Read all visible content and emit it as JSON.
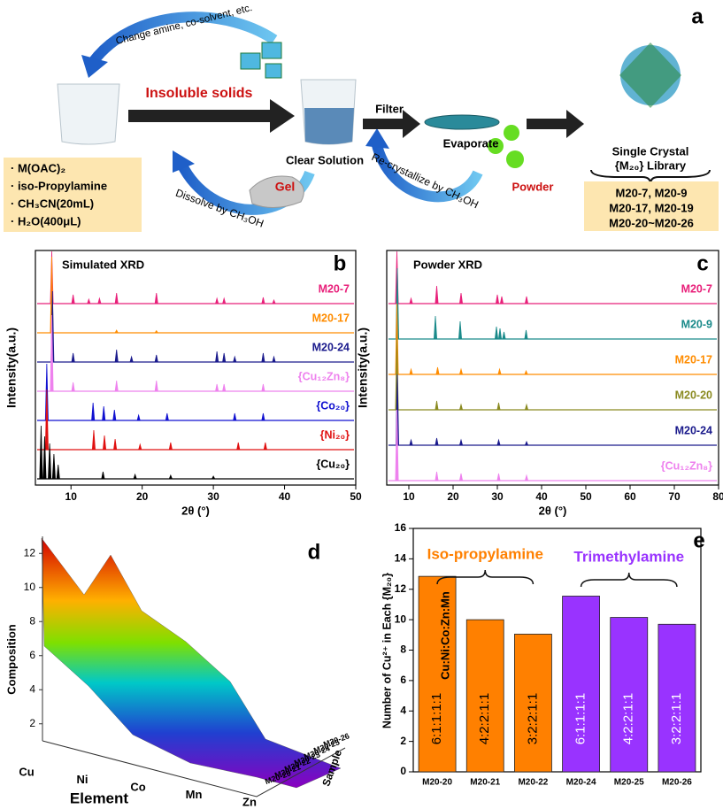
{
  "panel_a": {
    "label": "a",
    "arrow_top": "Change amine, co-solvent, etc.",
    "insoluble": "Insoluble solids",
    "clear": "Clear Solution",
    "filter": "Filter",
    "evaporate": "Evaporate",
    "powder": "Powder",
    "gel": "Gel",
    "dissolve": "Dissolve by CH₃OH",
    "recrystallize": "Re-crystallize by CH₃OH",
    "reagents": [
      "· M(OAC)₂",
      "· iso-Propylamine",
      "· CH₃CN(20mL)",
      "· H₂O(400μL)"
    ],
    "library_title": "Single Crystal",
    "library_sub": "{M₂₀} Library",
    "library": [
      "M20-7, M20-9",
      "M20-17, M20-19",
      "M20-20~M20-26"
    ]
  },
  "chart_data": [
    {
      "type": "xrd",
      "label": "b",
      "title": "Simulated XRD",
      "ylabel": "Intensity(a.u.)",
      "xlabel": "2θ (°)",
      "xlim": [
        5,
        50
      ],
      "xticks": [
        10,
        20,
        30,
        40,
        50
      ],
      "series": [
        {
          "name": "M20-7",
          "color": "#e8207a",
          "peaks": [
            [
              7.3,
              3
            ],
            [
              10.3,
              0.5
            ],
            [
              12.5,
              0.25
            ],
            [
              14,
              0.3
            ],
            [
              16.4,
              0.6
            ],
            [
              22,
              0.6
            ],
            [
              30.5,
              0.3
            ],
            [
              31.5,
              0.3
            ],
            [
              37,
              0.35
            ],
            [
              38.5,
              0.2
            ]
          ]
        },
        {
          "name": "M20-17",
          "color": "#ff8c00",
          "peaks": [
            [
              7.3,
              4.3
            ],
            [
              16.4,
              0.15
            ],
            [
              22,
              0.12
            ]
          ]
        },
        {
          "name": "M20-24",
          "color": "#1a1a8c",
          "peaks": [
            [
              7.4,
              4
            ],
            [
              10.3,
              0.5
            ],
            [
              16.4,
              0.7
            ],
            [
              18.5,
              0.3
            ],
            [
              22,
              0.4
            ],
            [
              30.5,
              0.6
            ],
            [
              31.5,
              0.5
            ],
            [
              33,
              0.3
            ],
            [
              37,
              0.5
            ],
            [
              38.5,
              0.3
            ]
          ]
        },
        {
          "name": "{Cu₁₂Zn₈}",
          "color": "#ee82ee",
          "peaks": [
            [
              7.3,
              4.3
            ],
            [
              10.3,
              0.5
            ],
            [
              16.4,
              0.6
            ],
            [
              22,
              0.6
            ],
            [
              30.5,
              0.4
            ],
            [
              31.5,
              0.4
            ],
            [
              37,
              0.4
            ]
          ]
        },
        {
          "name": "{Co₂₀}",
          "color": "#1010d0",
          "peaks": [
            [
              6.6,
              3.2
            ],
            [
              13.1,
              1
            ],
            [
              14.6,
              0.8
            ],
            [
              16.1,
              0.6
            ],
            [
              19.5,
              0.3
            ],
            [
              23.5,
              0.4
            ],
            [
              33,
              0.4
            ],
            [
              37,
              0.4
            ]
          ]
        },
        {
          "name": "{Ni₂₀}",
          "color": "#e01010",
          "peaks": [
            [
              6.6,
              3.4
            ],
            [
              13.2,
              1.1
            ],
            [
              14.7,
              0.8
            ],
            [
              16.2,
              0.6
            ],
            [
              19.7,
              0.3
            ],
            [
              24,
              0.4
            ],
            [
              33.5,
              0.4
            ],
            [
              37.3,
              0.4
            ]
          ]
        },
        {
          "name": "{Cu₂₀}",
          "color": "#000000",
          "peaks": [
            [
              5.8,
              3
            ],
            [
              6.3,
              2.4
            ],
            [
              7,
              2
            ],
            [
              7.6,
              1.4
            ],
            [
              8.2,
              0.8
            ],
            [
              14.5,
              0.4
            ],
            [
              19,
              0.25
            ],
            [
              24,
              0.2
            ],
            [
              30,
              0.15
            ]
          ]
        }
      ]
    },
    {
      "type": "xrd",
      "label": "c",
      "title": "Powder XRD",
      "ylabel": "Intensity(a.u.)",
      "xlabel": "2θ (°)",
      "xlim": [
        5,
        80
      ],
      "xticks": [
        10,
        20,
        30,
        40,
        50,
        60,
        70,
        80
      ],
      "series": [
        {
          "name": "M20-7",
          "color": "#e8207a",
          "peaks": [
            [
              7.3,
              3
            ],
            [
              10.5,
              0.3
            ],
            [
              16.3,
              1
            ],
            [
              21.8,
              0.6
            ],
            [
              30,
              0.5
            ],
            [
              31,
              0.4
            ],
            [
              36.6,
              0.4
            ]
          ]
        },
        {
          "name": "M20-9",
          "color": "#1a8a8a",
          "peaks": [
            [
              7.4,
              4
            ],
            [
              16,
              1.3
            ],
            [
              21.6,
              1
            ],
            [
              29.8,
              0.7
            ],
            [
              30.6,
              0.6
            ],
            [
              31.5,
              0.4
            ],
            [
              36.5,
              0.5
            ]
          ]
        },
        {
          "name": "M20-17",
          "color": "#ff8c00",
          "peaks": [
            [
              7.3,
              4
            ],
            [
              10.5,
              0.3
            ],
            [
              16.5,
              0.4
            ],
            [
              21.8,
              0.3
            ],
            [
              30.5,
              0.3
            ],
            [
              36.5,
              0.2
            ]
          ]
        },
        {
          "name": "M20-20",
          "color": "#8a8a20",
          "peaks": [
            [
              7.3,
              4
            ],
            [
              16.3,
              0.5
            ],
            [
              21.8,
              0.3
            ],
            [
              30.3,
              0.4
            ],
            [
              36.6,
              0.3
            ]
          ]
        },
        {
          "name": "M20-24",
          "color": "#1a1a8c",
          "peaks": [
            [
              7.4,
              4
            ],
            [
              10.5,
              0.3
            ],
            [
              16.3,
              0.4
            ],
            [
              21.8,
              0.3
            ],
            [
              30.3,
              0.3
            ],
            [
              36.6,
              0.2
            ]
          ]
        },
        {
          "name": "{Cu₁₂Zn₈}",
          "color": "#ee82ee",
          "peaks": [
            [
              7.3,
              4
            ],
            [
              16.3,
              0.5
            ],
            [
              21.8,
              0.4
            ],
            [
              30.3,
              0.4
            ],
            [
              36.6,
              0.3
            ]
          ]
        }
      ]
    },
    {
      "type": "surface3d",
      "label": "d",
      "ylabel": "Composition",
      "xlabel": "Element",
      "depth_label": "Sample",
      "categories": [
        "Cu",
        "Ni",
        "Co",
        "Mn",
        "Zn"
      ],
      "samples": [
        "M20-20",
        "M20-21",
        "M20-22",
        "M20-23",
        "M20-24",
        "M20-25",
        "M20-26"
      ],
      "zlim": [
        1,
        13
      ],
      "zticks": [
        2,
        4,
        6,
        8,
        10,
        12
      ]
    },
    {
      "type": "bar",
      "label": "e",
      "ylabel": "Number of Cu²⁺ in Each {M₂₀}",
      "categories": [
        "M20-20",
        "M20-21",
        "M20-22",
        "M20-24",
        "M20-25",
        "M20-26"
      ],
      "values": [
        12.85,
        10,
        9.05,
        11.55,
        10.15,
        9.7
      ],
      "value_labels": [
        "6:1:1:1:1",
        "4:2:2:1:1",
        "3:2:2:1:1",
        "6:1:1:1:1",
        "4:2:2:1:1",
        "3:2:2:1:1"
      ],
      "colors": [
        "#ff8000",
        "#ff8000",
        "#ff8000",
        "#9933ff",
        "#9933ff",
        "#9933ff"
      ],
      "ratio_order": "Cu:Ni:Co:Zn:Mn",
      "groups": [
        {
          "name": "Iso-propylamine",
          "color": "#ff8000"
        },
        {
          "name": "Trimethylamine",
          "color": "#9933ff"
        }
      ],
      "ylim": [
        0,
        16
      ],
      "yticks": [
        0,
        2,
        4,
        6,
        8,
        10,
        12,
        14,
        16
      ]
    }
  ]
}
